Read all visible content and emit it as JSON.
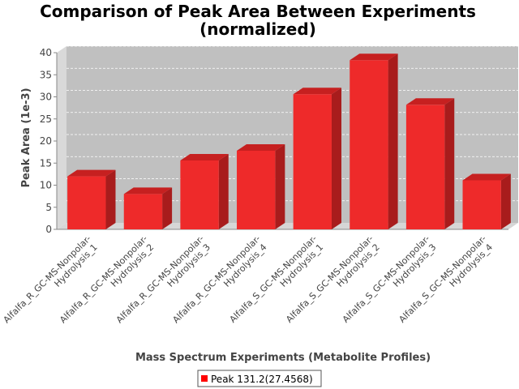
{
  "chart_data": {
    "type": "bar",
    "title": [
      "Comparison of Peak Area Between Experiments",
      "(normalized)"
    ],
    "xlabel": "Mass Spectrum Experiments (Metabolite Profiles)",
    "ylabel": "Peak Area (1e-3)",
    "ylim": [
      0,
      40
    ],
    "yticks": [
      "0",
      "5",
      "10",
      "15",
      "20",
      "25",
      "30",
      "35",
      "40"
    ],
    "categories": [
      [
        "Alfalfa_R_GC-MS-Nonpolar-",
        "Hydrolysis_1"
      ],
      [
        "Alfalfa_R_GC-MS-Nonpolar-",
        "Hydrolysis_2"
      ],
      [
        "Alfalfa_R_GC-MS-Nonpolar-",
        "Hydrolysis_3"
      ],
      [
        "Alfalfa_R_GC-MS-Nonpolar-",
        "Hydrolysis_4"
      ],
      [
        "Alfalfa_S_GC-MS-Nonpolar-",
        "Hydrolysis_1"
      ],
      [
        "Alfalfa_S_GC-MS-Nonpolar-",
        "Hydrolysis_2"
      ],
      [
        "Alfalfa_S_GC-MS-Nonpolar-",
        "Hydrolysis_3"
      ],
      [
        "Alfalfa_S_GC-MS-Nonpolar-",
        "Hydrolysis_4"
      ]
    ],
    "series": [
      {
        "name": "Peak 131.2(27.4568)",
        "values": [
          12.0,
          8.0,
          15.6,
          17.8,
          30.6,
          38.3,
          28.2,
          11.1
        ]
      }
    ],
    "grid": true,
    "legend": "bottom",
    "colors": {
      "bar_front": "#ee2a2a",
      "bar_top": "#c62020",
      "bar_side": "#a81c1c",
      "plot_back": "#c0c0c0",
      "plot_floor": "#d6d6d6",
      "plot_wall": "#d9d9d9",
      "legend_swatch": "#ff0000"
    }
  }
}
